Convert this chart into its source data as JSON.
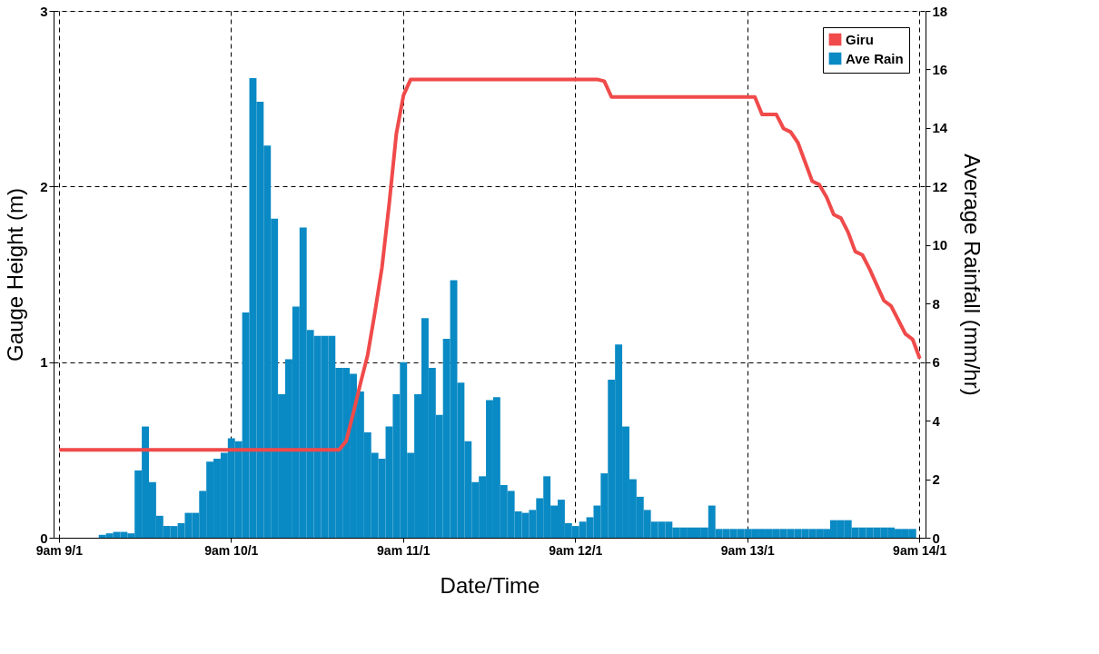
{
  "chart_data": {
    "type": "bar",
    "xlabel": "Date/Time",
    "ylabel": "Gauge Height (m)",
    "y2label": "Average Rainfall (mm/hr)",
    "categories": [
      "9am 9/1",
      null,
      null,
      null,
      null,
      null,
      null,
      null,
      null,
      null,
      null,
      null,
      null,
      null,
      null,
      null,
      null,
      null,
      null,
      null,
      null,
      null,
      null,
      null,
      "9am 10/1",
      null,
      null,
      null,
      null,
      null,
      null,
      null,
      null,
      null,
      null,
      null,
      null,
      null,
      null,
      null,
      null,
      null,
      null,
      null,
      null,
      null,
      null,
      null,
      "9am 11/1",
      null,
      null,
      null,
      null,
      null,
      null,
      null,
      null,
      null,
      null,
      null,
      null,
      null,
      null,
      null,
      null,
      null,
      null,
      null,
      null,
      null,
      null,
      null,
      "9am 12/1",
      null,
      null,
      null,
      null,
      null,
      null,
      null,
      null,
      null,
      null,
      null,
      null,
      null,
      null,
      null,
      null,
      null,
      null,
      null,
      null,
      null,
      null,
      null,
      "9am 13/1",
      null,
      null,
      null,
      null,
      null,
      null,
      null,
      null,
      null,
      null,
      null,
      null,
      null,
      null,
      null,
      null,
      null,
      null,
      null,
      null,
      null,
      null,
      null,
      "9am 14/1"
    ],
    "ylim": [
      0,
      3
    ],
    "yticks": [
      0,
      1,
      2,
      3
    ],
    "y2lim": [
      0,
      18
    ],
    "y2ticks": [
      0,
      2,
      4,
      6,
      8,
      10,
      12,
      14,
      16,
      18
    ],
    "grid": true,
    "legend": "top right",
    "series": [
      {
        "name": "Giru",
        "type": "line",
        "axis": "y",
        "color": "#f04a4a",
        "values": [
          0.5,
          0.5,
          0.5,
          0.5,
          0.5,
          0.5,
          0.5,
          0.5,
          0.5,
          0.5,
          0.5,
          0.5,
          0.5,
          0.5,
          0.5,
          0.5,
          0.5,
          0.5,
          0.5,
          0.5,
          0.5,
          0.5,
          0.5,
          0.5,
          0.5,
          0.5,
          0.5,
          0.5,
          0.5,
          0.5,
          0.5,
          0.5,
          0.5,
          0.5,
          0.5,
          0.5,
          0.5,
          0.5,
          0.5,
          0.5,
          0.55,
          0.71,
          0.88,
          1.04,
          1.28,
          1.54,
          1.9,
          2.3,
          2.52,
          2.61,
          2.61,
          2.61,
          2.61,
          2.61,
          2.61,
          2.61,
          2.61,
          2.61,
          2.61,
          2.61,
          2.61,
          2.61,
          2.61,
          2.61,
          2.61,
          2.61,
          2.61,
          2.61,
          2.61,
          2.61,
          2.61,
          2.61,
          2.61,
          2.61,
          2.61,
          2.61,
          2.6,
          2.51,
          2.51,
          2.51,
          2.51,
          2.51,
          2.51,
          2.51,
          2.51,
          2.51,
          2.51,
          2.51,
          2.51,
          2.51,
          2.51,
          2.51,
          2.51,
          2.51,
          2.51,
          2.51,
          2.51,
          2.51,
          2.41,
          2.41,
          2.41,
          2.33,
          2.31,
          2.25,
          2.14,
          2.03,
          2.01,
          1.94,
          1.84,
          1.82,
          1.74,
          1.63,
          1.61,
          1.53,
          1.44,
          1.35,
          1.32,
          1.24,
          1.16,
          1.13,
          1.02
        ]
      },
      {
        "name": "Ave Rain",
        "axis": "y2",
        "color": "#0a8ac4",
        "values": [
          0,
          0,
          0,
          0,
          0,
          0,
          0.1,
          0.15,
          0.2,
          0.2,
          0.15,
          2.3,
          3.8,
          1.9,
          0.75,
          0.4,
          0.4,
          0.5,
          0.85,
          0.85,
          1.6,
          2.6,
          2.7,
          2.9,
          3.4,
          3.3,
          7.7,
          15.7,
          14.9,
          13.4,
          10.9,
          4.9,
          6.1,
          7.9,
          10.6,
          7.1,
          6.9,
          6.9,
          6.9,
          5.8,
          5.8,
          5.6,
          5.0,
          3.6,
          2.9,
          2.7,
          3.8,
          4.9,
          6.0,
          2.9,
          4.9,
          7.5,
          5.8,
          4.2,
          6.8,
          8.8,
          5.3,
          3.3,
          1.9,
          2.1,
          4.7,
          4.8,
          1.8,
          1.6,
          0.9,
          0.85,
          0.95,
          1.35,
          2.1,
          1.1,
          1.3,
          0.5,
          0.4,
          0.55,
          0.7,
          1.1,
          2.2,
          5.4,
          6.6,
          3.8,
          2.0,
          1.4,
          0.95,
          0.55,
          0.55,
          0.55,
          0.35,
          0.35,
          0.35,
          0.35,
          0.35,
          1.1,
          0.3,
          0.3,
          0.3,
          0.3,
          0.3,
          0.3,
          0.3,
          0.3,
          0.3,
          0.3,
          0.3,
          0.3,
          0.3,
          0.3,
          0.3,
          0.3,
          0.6,
          0.6,
          0.6,
          0.35,
          0.35,
          0.35,
          0.35,
          0.35,
          0.35,
          0.3,
          0.3,
          0.3,
          null
        ]
      }
    ]
  }
}
